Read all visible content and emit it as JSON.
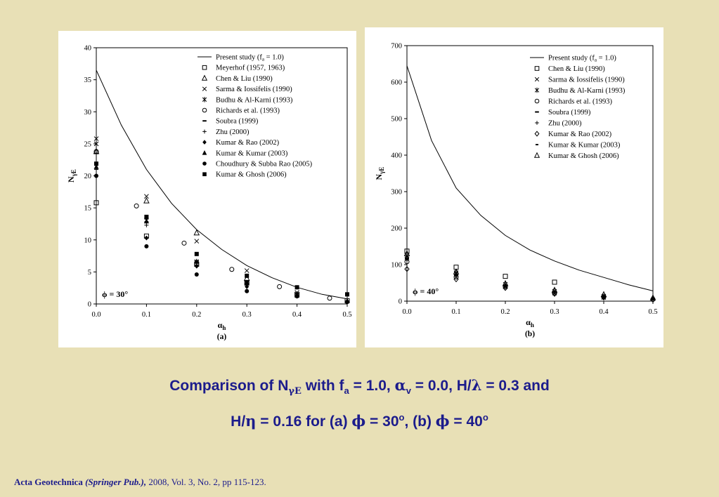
{
  "caption": {
    "line1": {
      "t1": "Comparison of N",
      "sub1": "γE",
      "t2": " with f",
      "sub2": "a",
      "t3": " = 1.0, ",
      "alpha": "α",
      "sub3": "v",
      "t4": " = 0.0, H/",
      "lambda": "λ",
      "t5": " = 0.3 and"
    },
    "line2": {
      "t1": "H/",
      "eta": "η",
      "t2": " = 0.16 for (a) ",
      "phi1": "ϕ",
      "t3": " = 30",
      "sup1": "o",
      "t4": ", (b) ",
      "phi2": "ϕ",
      "t5": " = 40",
      "sup2": "o"
    }
  },
  "footer": {
    "journal": "Acta Geotechnica",
    "publisher": "(Springer Pub.),",
    "details": " 2008, Vol. 3, No. 2, pp 115-123."
  },
  "chart_data": [
    {
      "id": "a",
      "type": "scatter",
      "panel_label": "(a)",
      "annotation": "ϕ = 30°",
      "xlabel": "α_h",
      "ylabel": "N_γE",
      "xlim": [
        0,
        0.5
      ],
      "ylim": [
        0,
        40
      ],
      "xticks": [
        "0.0",
        "0.1",
        "0.2",
        "0.3",
        "0.4",
        "0.5"
      ],
      "yticks": [
        "0",
        "5",
        "10",
        "15",
        "20",
        "25",
        "30",
        "35",
        "40"
      ],
      "grid": false,
      "legend_position": "top-right",
      "series": [
        {
          "name": "Present study (f_a = 1.0)",
          "marker": "line",
          "x": [
            0,
            0.05,
            0.1,
            0.15,
            0.2,
            0.25,
            0.3,
            0.35,
            0.4,
            0.45,
            0.5
          ],
          "y": [
            36.5,
            27.9,
            21.0,
            15.7,
            11.6,
            8.5,
            6.0,
            4.1,
            2.6,
            1.5,
            0.8
          ]
        },
        {
          "name": "Meyerhof (1957, 1963)",
          "marker": "square-open",
          "x": [
            0,
            0.1,
            0.2,
            0.3,
            0.4,
            0.5
          ],
          "y": [
            15.8,
            10.6,
            6.2,
            3.3,
            1.5,
            0.5
          ]
        },
        {
          "name": "Chen & Liu (1990)",
          "marker": "triangle-open",
          "x": [
            0,
            0.1,
            0.2,
            0.3
          ],
          "y": [
            23.8,
            16.1,
            11.1,
            4.0
          ]
        },
        {
          "name": "Sarma & Iossifelis (1990)",
          "marker": "x",
          "x": [
            0,
            0.1,
            0.2,
            0.3,
            0.4
          ],
          "y": [
            25.8,
            16.8,
            9.8,
            5.2,
            1.8
          ]
        },
        {
          "name": "Budhu & Al-Karni (1993)",
          "marker": "star",
          "x": [
            0,
            0.1,
            0.2,
            0.3,
            0.4
          ],
          "y": [
            25.0,
            13.1,
            6.6,
            3.2,
            1.4
          ]
        },
        {
          "name": "Richards et al. (1993)",
          "marker": "circle-open",
          "x": [
            0,
            0.08,
            0.175,
            0.27,
            0.365,
            0.465
          ],
          "y": [
            23.8,
            15.3,
            9.5,
            5.4,
            2.7,
            0.9
          ]
        },
        {
          "name": "Soubra (1999)",
          "marker": "dash",
          "x": [
            0,
            0.1,
            0.2,
            0.3,
            0.4
          ],
          "y": [
            23.5,
            13.3,
            6.7,
            3.6,
            1.6
          ]
        },
        {
          "name": "Zhu (2000)",
          "marker": "plus",
          "x": [
            0,
            0.1,
            0.2,
            0.3,
            0.4
          ],
          "y": [
            21.0,
            12.3,
            6.1,
            3.0,
            1.3
          ]
        },
        {
          "name": "Kumar & Rao (2002)",
          "marker": "diamond-filled",
          "x": [
            0,
            0.1,
            0.2,
            0.3,
            0.4,
            0.5
          ],
          "y": [
            20.0,
            10.3,
            5.9,
            2.7,
            1.2,
            0.4
          ]
        },
        {
          "name": "Kumar & Kumar (2003)",
          "marker": "triangle-filled",
          "x": [
            0,
            0.1,
            0.2,
            0.3,
            0.4,
            0.5
          ],
          "y": [
            21.4,
            12.9,
            6.6,
            3.4,
            1.3,
            0.5
          ]
        },
        {
          "name": "Choudhury & Subba Rao (2005)",
          "marker": "circle-filled",
          "x": [
            0,
            0.1,
            0.2,
            0.3,
            0.4,
            0.5
          ],
          "y": [
            20.0,
            9.0,
            4.6,
            2.0,
            1.2,
            0.3
          ]
        },
        {
          "name": "Kumar & Ghosh (2006)",
          "marker": "square-filled",
          "x": [
            0,
            0.1,
            0.2,
            0.3,
            0.4,
            0.5
          ],
          "y": [
            21.9,
            13.6,
            7.8,
            4.4,
            2.6,
            1.5
          ]
        }
      ]
    },
    {
      "id": "b",
      "type": "scatter",
      "panel_label": "(b)",
      "annotation": "ϕ = 40°",
      "xlabel": "α_h",
      "ylabel": "N_γE",
      "xlim": [
        0,
        0.5
      ],
      "ylim": [
        0,
        700
      ],
      "xticks": [
        "0.0",
        "0.1",
        "0.2",
        "0.3",
        "0.4",
        "0.5"
      ],
      "yticks": [
        "0",
        "100",
        "200",
        "300",
        "400",
        "500",
        "600",
        "700"
      ],
      "grid": false,
      "legend_position": "top-right",
      "series": [
        {
          "name": "Present study (f_a = 1.0)",
          "marker": "line",
          "x": [
            0,
            0.05,
            0.1,
            0.15,
            0.2,
            0.25,
            0.3,
            0.35,
            0.4,
            0.45,
            0.5
          ],
          "y": [
            645,
            440,
            310,
            235,
            180,
            140,
            110,
            85,
            65,
            45,
            28
          ]
        },
        {
          "name": "Chen & Liu (1990)",
          "marker": "square-open",
          "x": [
            0,
            0.1,
            0.2,
            0.3
          ],
          "y": [
            137,
            93,
            68,
            52
          ]
        },
        {
          "name": "Sarma & Iossifelis (1990)",
          "marker": "x",
          "x": [
            0,
            0.1,
            0.2,
            0.3,
            0.4
          ],
          "y": [
            120,
            75,
            40,
            22,
            10
          ]
        },
        {
          "name": "Budhu & Al-Karni (1993)",
          "marker": "star",
          "x": [
            0,
            0.1,
            0.2,
            0.3,
            0.4
          ],
          "y": [
            125,
            78,
            46,
            27,
            13
          ]
        },
        {
          "name": "Richards et al. (1993)",
          "marker": "circle-open",
          "x": [
            0,
            0.1,
            0.2,
            0.3,
            0.4,
            0.5
          ],
          "y": [
            108,
            66,
            40,
            22,
            12,
            5
          ]
        },
        {
          "name": "Soubra (1999)",
          "marker": "dash",
          "x": [
            0,
            0.1,
            0.2,
            0.3,
            0.4,
            0.5
          ],
          "y": [
            118,
            70,
            42,
            24,
            12,
            6
          ]
        },
        {
          "name": "Zhu (2000)",
          "marker": "plus",
          "x": [
            0,
            0.1,
            0.2,
            0.3,
            0.4,
            0.5
          ],
          "y": [
            112,
            68,
            38,
            20,
            10,
            4
          ]
        },
        {
          "name": "Kumar & Rao (2002)",
          "marker": "diamond-open",
          "x": [
            0,
            0.1,
            0.2,
            0.3,
            0.4,
            0.5
          ],
          "y": [
            88,
            60,
            36,
            20,
            10,
            4
          ]
        },
        {
          "name": "Kumar & Kumar (2003)",
          "marker": "dot",
          "x": [
            0,
            0.1,
            0.2,
            0.3,
            0.4,
            0.5
          ],
          "y": [
            115,
            72,
            44,
            25,
            12,
            5
          ]
        },
        {
          "name": "Kumar & Ghosh (2006)",
          "marker": "triangle-open",
          "x": [
            0,
            0.1,
            0.2,
            0.3,
            0.4,
            0.5
          ],
          "y": [
            130,
            80,
            48,
            30,
            18,
            9
          ]
        }
      ]
    }
  ]
}
